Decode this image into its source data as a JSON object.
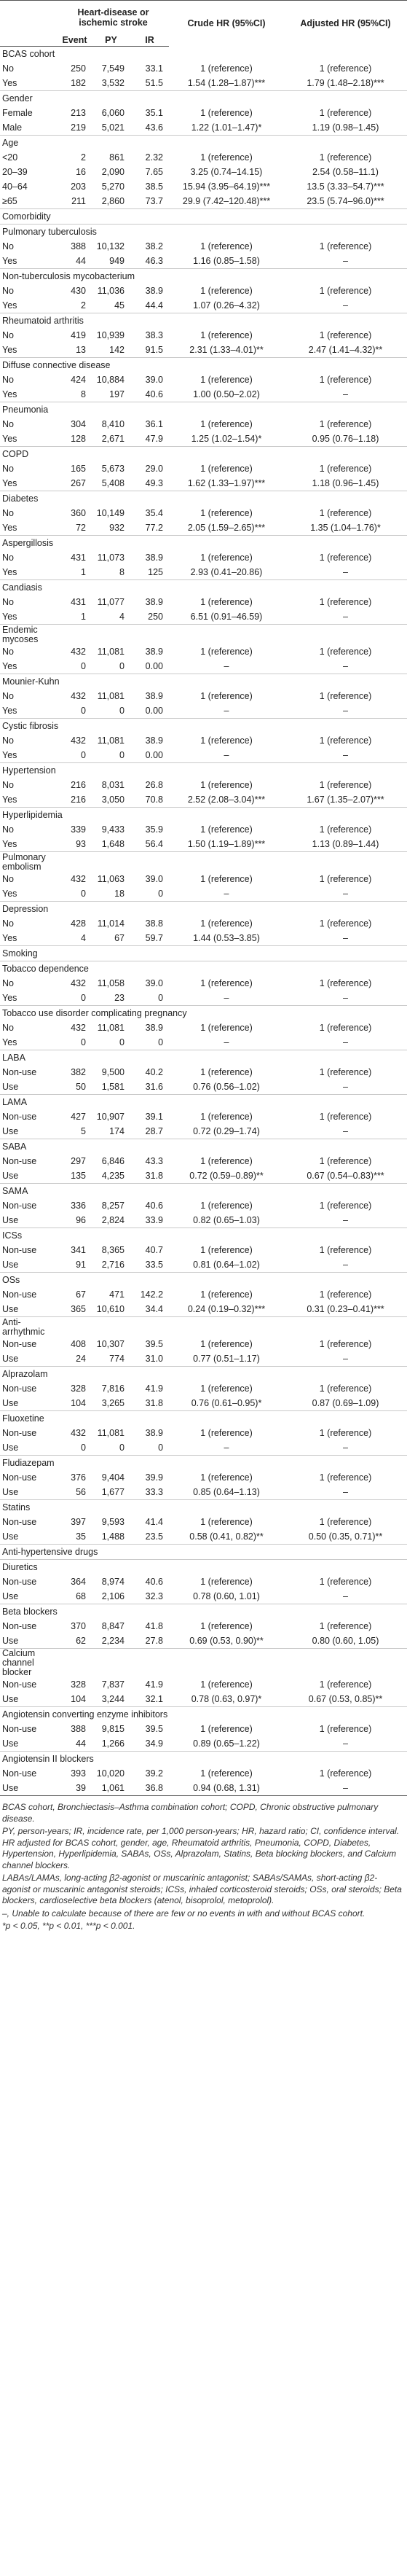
{
  "headers": {
    "group": "Heart-disease or ischemic stroke",
    "crude": "Crude HR (95%CI)",
    "adjusted": "Adjusted HR (95%CI)",
    "event": "Event",
    "py": "PY",
    "ir": "IR"
  },
  "rows": [
    {
      "kind": "section",
      "label": "BCAS cohort"
    },
    {
      "label": "No",
      "event": "250",
      "py": "7,549",
      "ir": "33.1",
      "crude": "1 (reference)",
      "adjusted": "1 (reference)"
    },
    {
      "label": "Yes",
      "event": "182",
      "py": "3,532",
      "ir": "51.5",
      "crude": "1.54 (1.28–1.87)***",
      "adjusted": "1.79 (1.48–2.18)***"
    },
    {
      "kind": "section",
      "label": "Gender"
    },
    {
      "label": "Female",
      "event": "213",
      "py": "6,060",
      "ir": "35.1",
      "crude": "1 (reference)",
      "adjusted": "1 (reference)"
    },
    {
      "label": "Male",
      "event": "219",
      "py": "5,021",
      "ir": "43.6",
      "crude": "1.22 (1.01–1.47)*",
      "adjusted": "1.19 (0.98–1.45)"
    },
    {
      "kind": "section",
      "label": "Age"
    },
    {
      "label": "<20",
      "event": "2",
      "py": "861",
      "ir": "2.32",
      "crude": "1 (reference)",
      "adjusted": "1 (reference)"
    },
    {
      "label": "20–39",
      "event": "16",
      "py": "2,090",
      "ir": "7.65",
      "crude": "3.25 (0.74–14.15)",
      "adjusted": "2.54 (0.58–11.1)"
    },
    {
      "label": "40–64",
      "event": "203",
      "py": "5,270",
      "ir": "38.5",
      "crude": "15.94 (3.95–64.19)***",
      "adjusted": "13.5 (3.33–54.7)***"
    },
    {
      "label": "≥65",
      "event": "211",
      "py": "2,860",
      "ir": "73.7",
      "crude": "29.9 (7.42–120.48)***",
      "adjusted": "23.5 (5.74–96.0)***"
    },
    {
      "kind": "section",
      "label": "Comorbidity"
    },
    {
      "kind": "section",
      "label": "Pulmonary tuberculosis"
    },
    {
      "label": "No",
      "event": "388",
      "py": "10,132",
      "ir": "38.2",
      "crude": "1 (reference)",
      "adjusted": "1 (reference)"
    },
    {
      "label": "Yes",
      "event": "44",
      "py": "949",
      "ir": "46.3",
      "crude": "1.16 (0.85–1.58)",
      "adjusted": "–"
    },
    {
      "kind": "section",
      "label": "Non-tuberculosis mycobacterium"
    },
    {
      "label": "No",
      "event": "430",
      "py": "11,036",
      "ir": "38.9",
      "crude": "1 (reference)",
      "adjusted": "1 (reference)"
    },
    {
      "label": "Yes",
      "event": "2",
      "py": "45",
      "ir": "44.4",
      "crude": "1.07 (0.26–4.32)",
      "adjusted": "–"
    },
    {
      "kind": "section",
      "label": "Rheumatoid arthritis"
    },
    {
      "label": "No",
      "event": "419",
      "py": "10,939",
      "ir": "38.3",
      "crude": "1 (reference)",
      "adjusted": "1 (reference)"
    },
    {
      "label": "Yes",
      "event": "13",
      "py": "142",
      "ir": "91.5",
      "crude": "2.31 (1.33–4.01)**",
      "adjusted": "2.47 (1.41–4.32)**"
    },
    {
      "kind": "section",
      "label": "Diffuse connective disease"
    },
    {
      "label": "No",
      "event": "424",
      "py": "10,884",
      "ir": "39.0",
      "crude": "1 (reference)",
      "adjusted": "1 (reference)"
    },
    {
      "label": "Yes",
      "event": "8",
      "py": "197",
      "ir": "40.6",
      "crude": "1.00 (0.50–2.02)",
      "adjusted": "–"
    },
    {
      "kind": "section",
      "label": "Pneumonia"
    },
    {
      "label": "No",
      "event": "304",
      "py": "8,410",
      "ir": "36.1",
      "crude": "1 (reference)",
      "adjusted": "1 (reference)"
    },
    {
      "label": "Yes",
      "event": "128",
      "py": "2,671",
      "ir": "47.9",
      "crude": "1.25 (1.02–1.54)*",
      "adjusted": "0.95 (0.76–1.18)"
    },
    {
      "kind": "section",
      "label": "COPD"
    },
    {
      "label": "No",
      "event": "165",
      "py": "5,673",
      "ir": "29.0",
      "crude": "1 (reference)",
      "adjusted": "1 (reference)"
    },
    {
      "label": "Yes",
      "event": "267",
      "py": "5,408",
      "ir": "49.3",
      "crude": "1.62 (1.33–1.97)***",
      "adjusted": "1.18 (0.96–1.45)"
    },
    {
      "kind": "section",
      "label": "Diabetes"
    },
    {
      "label": "No",
      "event": "360",
      "py": "10,149",
      "ir": "35.4",
      "crude": "1 (reference)",
      "adjusted": "1 (reference)"
    },
    {
      "label": "Yes",
      "event": "72",
      "py": "932",
      "ir": "77.2",
      "crude": "2.05 (1.59–2.65)***",
      "adjusted": "1.35 (1.04–1.76)*"
    },
    {
      "kind": "section",
      "label": "Aspergillosis"
    },
    {
      "label": "No",
      "event": "431",
      "py": "11,073",
      "ir": "38.9",
      "crude": "1 (reference)",
      "adjusted": "1 (reference)"
    },
    {
      "label": "Yes",
      "event": "1",
      "py": "8",
      "ir": "125",
      "crude": "2.93 (0.41–20.86)",
      "adjusted": "–"
    },
    {
      "kind": "section",
      "label": "Candiasis"
    },
    {
      "label": "No",
      "event": "431",
      "py": "11,077",
      "ir": "38.9",
      "crude": "1 (reference)",
      "adjusted": "1 (reference)"
    },
    {
      "label": "Yes",
      "event": "1",
      "py": "4",
      "ir": "250",
      "crude": "6.51 (0.91–46.59)",
      "adjusted": "–"
    },
    {
      "kind": "section",
      "label": "Endemic mycoses",
      "tall": true
    },
    {
      "label": "No",
      "event": "432",
      "py": "11,081",
      "ir": "38.9",
      "crude": "1 (reference)",
      "adjusted": "1 (reference)"
    },
    {
      "label": "Yes",
      "event": "0",
      "py": "0",
      "ir": "0.00",
      "crude": "–",
      "adjusted": "–"
    },
    {
      "kind": "section",
      "label": "Mounier-Kuhn"
    },
    {
      "label": "No",
      "event": "432",
      "py": "11,081",
      "ir": "38.9",
      "crude": "1 (reference)",
      "adjusted": "1 (reference)"
    },
    {
      "label": "Yes",
      "event": "0",
      "py": "0",
      "ir": "0.00",
      "crude": "–",
      "adjusted": "–"
    },
    {
      "kind": "section",
      "label": "Cystic fibrosis"
    },
    {
      "label": "No",
      "event": "432",
      "py": "11,081",
      "ir": "38.9",
      "crude": "1 (reference)",
      "adjusted": "1 (reference)"
    },
    {
      "label": "Yes",
      "event": "0",
      "py": "0",
      "ir": "0.00",
      "crude": "–",
      "adjusted": "–"
    },
    {
      "kind": "section",
      "label": "Hypertension"
    },
    {
      "label": "No",
      "event": "216",
      "py": "8,031",
      "ir": "26.8",
      "crude": "1 (reference)",
      "adjusted": "1 (reference)"
    },
    {
      "label": "Yes",
      "event": "216",
      "py": "3,050",
      "ir": "70.8",
      "crude": "2.52 (2.08–3.04)***",
      "adjusted": "1.67 (1.35–2.07)***"
    },
    {
      "kind": "section",
      "label": "Hyperlipidemia"
    },
    {
      "label": "No",
      "event": "339",
      "py": "9,433",
      "ir": "35.9",
      "crude": "1 (reference)",
      "adjusted": "1 (reference)"
    },
    {
      "label": "Yes",
      "event": "93",
      "py": "1,648",
      "ir": "56.4",
      "crude": "1.50 (1.19–1.89)***",
      "adjusted": "1.13 (0.89–1.44)"
    },
    {
      "kind": "section",
      "label": "Pulmonary embolism",
      "tall": true
    },
    {
      "label": "No",
      "event": "432",
      "py": "11,063",
      "ir": "39.0",
      "crude": "1 (reference)",
      "adjusted": "1 (reference)"
    },
    {
      "label": "Yes",
      "event": "0",
      "py": "18",
      "ir": "0",
      "crude": "–",
      "adjusted": "–"
    },
    {
      "kind": "section",
      "label": "Depression"
    },
    {
      "label": "No",
      "event": "428",
      "py": "11,014",
      "ir": "38.8",
      "crude": "1 (reference)",
      "adjusted": "1 (reference)"
    },
    {
      "label": "Yes",
      "event": "4",
      "py": "67",
      "ir": "59.7",
      "crude": "1.44 (0.53–3.85)",
      "adjusted": "–"
    },
    {
      "kind": "section",
      "label": "Smoking"
    },
    {
      "kind": "section",
      "label": "Tobacco dependence"
    },
    {
      "label": "No",
      "event": "432",
      "py": "11,058",
      "ir": "39.0",
      "crude": "1 (reference)",
      "adjusted": "1 (reference)"
    },
    {
      "label": "Yes",
      "event": "0",
      "py": "23",
      "ir": "0",
      "crude": "–",
      "adjusted": "–"
    },
    {
      "kind": "section",
      "label": "Tobacco use disorder complicating pregnancy"
    },
    {
      "label": "No",
      "event": "432",
      "py": "11,081",
      "ir": "38.9",
      "crude": "1 (reference)",
      "adjusted": "1 (reference)"
    },
    {
      "label": "Yes",
      "event": "0",
      "py": "0",
      "ir": "0",
      "crude": "–",
      "adjusted": "–"
    },
    {
      "kind": "section",
      "label": "LABA"
    },
    {
      "label": "Non-use",
      "event": "382",
      "py": "9,500",
      "ir": "40.2",
      "crude": "1 (reference)",
      "adjusted": "1 (reference)"
    },
    {
      "label": "Use",
      "event": "50",
      "py": "1,581",
      "ir": "31.6",
      "crude": "0.76 (0.56–1.02)",
      "adjusted": "–"
    },
    {
      "kind": "section",
      "label": "LAMA"
    },
    {
      "label": "Non-use",
      "event": "427",
      "py": "10,907",
      "ir": "39.1",
      "crude": "1 (reference)",
      "adjusted": "1 (reference)"
    },
    {
      "label": "Use",
      "event": "5",
      "py": "174",
      "ir": "28.7",
      "crude": "0.72 (0.29–1.74)",
      "adjusted": "–"
    },
    {
      "kind": "section",
      "label": "SABA"
    },
    {
      "label": "Non-use",
      "event": "297",
      "py": "6,846",
      "ir": "43.3",
      "crude": "1 (reference)",
      "adjusted": "1 (reference)"
    },
    {
      "label": "Use",
      "event": "135",
      "py": "4,235",
      "ir": "31.8",
      "crude": "0.72 (0.59–0.89)**",
      "adjusted": "0.67 (0.54–0.83)***"
    },
    {
      "kind": "section",
      "label": "SAMA"
    },
    {
      "label": "Non-use",
      "event": "336",
      "py": "8,257",
      "ir": "40.6",
      "crude": "1 (reference)",
      "adjusted": "1 (reference)"
    },
    {
      "label": "Use",
      "event": "96",
      "py": "2,824",
      "ir": "33.9",
      "crude": "0.82 (0.65–1.03)",
      "adjusted": "–"
    },
    {
      "kind": "section",
      "label": "ICSs"
    },
    {
      "label": "Non-use",
      "event": "341",
      "py": "8,365",
      "ir": "40.7",
      "crude": "1 (reference)",
      "adjusted": "1 (reference)"
    },
    {
      "label": "Use",
      "event": "91",
      "py": "2,716",
      "ir": "33.5",
      "crude": "0.81 (0.64–1.02)",
      "adjusted": "–"
    },
    {
      "kind": "section",
      "label": "OSs"
    },
    {
      "label": "Non-use",
      "event": "67",
      "py": "471",
      "ir": "142.2",
      "crude": "1 (reference)",
      "adjusted": "1 (reference)"
    },
    {
      "label": "Use",
      "event": "365",
      "py": "10,610",
      "ir": "34.4",
      "crude": "0.24 (0.19–0.32)***",
      "adjusted": "0.31 (0.23–0.41)***"
    },
    {
      "kind": "section",
      "label": "Anti-arrhythmic",
      "tall": true
    },
    {
      "label": "Non-use",
      "event": "408",
      "py": "10,307",
      "ir": "39.5",
      "crude": "1 (reference)",
      "adjusted": "1 (reference)"
    },
    {
      "label": "Use",
      "event": "24",
      "py": "774",
      "ir": "31.0",
      "crude": "0.77 (0.51–1.17)",
      "adjusted": "–"
    },
    {
      "kind": "section",
      "label": "Alprazolam"
    },
    {
      "label": "Non-use",
      "event": "328",
      "py": "7,816",
      "ir": "41.9",
      "crude": "1 (reference)",
      "adjusted": "1 (reference)"
    },
    {
      "label": "Use",
      "event": "104",
      "py": "3,265",
      "ir": "31.8",
      "crude": "0.76 (0.61–0.95)*",
      "adjusted": "0.87 (0.69–1.09)"
    },
    {
      "kind": "section",
      "label": "Fluoxetine"
    },
    {
      "label": "Non-use",
      "event": "432",
      "py": "11,081",
      "ir": "38.9",
      "crude": "1 (reference)",
      "adjusted": "1 (reference)"
    },
    {
      "label": "Use",
      "event": "0",
      "py": "0",
      "ir": "0",
      "crude": "–",
      "adjusted": "–"
    },
    {
      "kind": "section",
      "label": "Fludiazepam"
    },
    {
      "label": "Non-use",
      "event": "376",
      "py": "9,404",
      "ir": "39.9",
      "crude": "1 (reference)",
      "adjusted": "1 (reference)"
    },
    {
      "label": "Use",
      "event": "56",
      "py": "1,677",
      "ir": "33.3",
      "crude": "0.85 (0.64–1.13)",
      "adjusted": "–"
    },
    {
      "kind": "section",
      "label": "Statins"
    },
    {
      "label": "Non-use",
      "event": "397",
      "py": "9,593",
      "ir": "41.4",
      "crude": "1 (reference)",
      "adjusted": "1 (reference)"
    },
    {
      "label": "Use",
      "event": "35",
      "py": "1,488",
      "ir": "23.5",
      "crude": "0.58 (0.41, 0.82)**",
      "adjusted": "0.50 (0.35, 0.71)**"
    },
    {
      "kind": "section",
      "label": "Anti-hypertensive drugs"
    },
    {
      "kind": "section",
      "label": "Diuretics"
    },
    {
      "label": "Non-use",
      "event": "364",
      "py": "8,974",
      "ir": "40.6",
      "crude": "1 (reference)",
      "adjusted": "1 (reference)"
    },
    {
      "label": "Use",
      "event": "68",
      "py": "2,106",
      "ir": "32.3",
      "crude": "0.78 (0.60, 1.01)",
      "adjusted": "–"
    },
    {
      "kind": "section",
      "label": "Beta blockers"
    },
    {
      "label": "Non-use",
      "event": "370",
      "py": "8,847",
      "ir": "41.8",
      "crude": "1 (reference)",
      "adjusted": "1 (reference)"
    },
    {
      "label": "Use",
      "event": "62",
      "py": "2,234",
      "ir": "27.8",
      "crude": "0.69 (0.53, 0.90)**",
      "adjusted": "0.80 (0.60, 1.05)"
    },
    {
      "kind": "section",
      "label": "Calcium channel blocker",
      "tall": true
    },
    {
      "label": "Non-use",
      "event": "328",
      "py": "7,837",
      "ir": "41.9",
      "crude": "1 (reference)",
      "adjusted": "1 (reference)"
    },
    {
      "label": "Use",
      "event": "104",
      "py": "3,244",
      "ir": "32.1",
      "crude": "0.78 (0.63, 0.97)*",
      "adjusted": "0.67 (0.53, 0.85)**"
    },
    {
      "kind": "section",
      "label": "Angiotensin converting enzyme inhibitors"
    },
    {
      "label": "Non-use",
      "event": "388",
      "py": "9,815",
      "ir": "39.5",
      "crude": "1 (reference)",
      "adjusted": "1 (reference)"
    },
    {
      "label": "Use",
      "event": "44",
      "py": "1,266",
      "ir": "34.9",
      "crude": "0.89 (0.65–1.22)",
      "adjusted": "–"
    },
    {
      "kind": "section",
      "label": "Angiotensin II blockers"
    },
    {
      "label": "Non-use",
      "event": "393",
      "py": "10,020",
      "ir": "39.2",
      "crude": "1 (reference)",
      "adjusted": "1 (reference)"
    },
    {
      "label": "Use",
      "event": "39",
      "py": "1,061",
      "ir": "36.8",
      "crude": "0.94 (0.68, 1.31)",
      "adjusted": "–"
    }
  ],
  "footnotes": [
    "BCAS cohort, Bronchiectasis–Asthma combination cohort; COPD, Chronic obstructive pulmonary disease.",
    "PY, person-years; IR, incidence rate, per 1,000 person-years; HR, hazard ratio; CI, confidence interval. HR adjusted for BCAS cohort, gender, age, Rheumatoid arthritis, Pneumonia, COPD, Diabetes, Hypertension, Hyperlipidemia, SABAs, OSs, Alprazolam, Statins, Beta blocking blockers, and Calcium channel blockers.",
    "LABAs/LAMAs, long-acting β2-agonist or muscarinic antagonist; SABAs/SAMAs, short-acting β2-agonist or muscarinic antagonist steroids; ICSs, inhaled corticosteroid steroids; OSs, oral steroids; Beta blockers, cardioselective beta blockers (atenol, bisoprolol, metoprolol).",
    "–, Unable to calculate because of there are few or no events in with and without BCAS cohort.",
    "*p < 0.05, **p < 0.01, ***p < 0.001."
  ]
}
